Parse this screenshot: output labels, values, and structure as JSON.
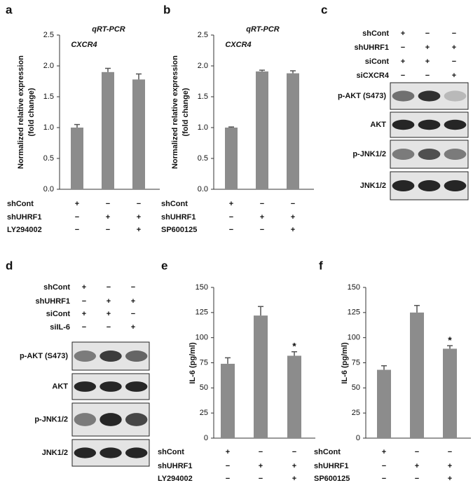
{
  "chart_data": [
    {
      "type": "bar",
      "panel": "a",
      "title": "qRT-PCR",
      "subtitle": "CXCR4",
      "y_label": [
        "Normalized relative expression",
        "(fold change)"
      ],
      "values": [
        1.0,
        1.9,
        1.78
      ],
      "errors": [
        0.05,
        0.06,
        0.09
      ],
      "significance": [
        null,
        null,
        null
      ],
      "color": "#8c8c8c",
      "ylim": [
        0,
        2.5
      ],
      "yticks": [
        {
          "value": 0,
          "label": "0.0"
        },
        0.5,
        {
          "value": 1,
          "label": "1.0"
        },
        1.5,
        {
          "value": 2,
          "label": "2.0"
        },
        2.5
      ],
      "conditions": [
        {
          "label": "shCont",
          "marks": [
            "+",
            "−",
            "−"
          ]
        },
        {
          "label": "shUHRF1",
          "marks": [
            "−",
            "+",
            "+"
          ]
        },
        {
          "label": "LY294002",
          "marks": [
            "−",
            "−",
            "+"
          ]
        }
      ]
    },
    {
      "type": "bar",
      "panel": "b",
      "title": "qRT-PCR",
      "subtitle": "CXCR4",
      "y_label": [
        "Normalized relative expression",
        "(fold change)"
      ],
      "values": [
        1.0,
        1.91,
        1.88
      ],
      "errors": [
        0.01,
        0.02,
        0.04
      ],
      "significance": [
        null,
        null,
        null
      ],
      "color": "#8c8c8c",
      "ylim": [
        0,
        2.5
      ],
      "yticks": [
        {
          "value": 0,
          "label": "0.0"
        },
        0.5,
        {
          "value": 1,
          "label": "1.0"
        },
        1.5,
        {
          "value": 2,
          "label": "2.0"
        },
        2.5
      ],
      "conditions": [
        {
          "label": "shCont",
          "marks": [
            "+",
            "−",
            "−"
          ]
        },
        {
          "label": "shUHRF1",
          "marks": [
            "−",
            "+",
            "+"
          ]
        },
        {
          "label": "SP600125",
          "marks": [
            "−",
            "−",
            "+"
          ]
        }
      ]
    },
    {
      "type": "bar",
      "panel": "e",
      "y_label": [
        "IL-6 (pg/ml)"
      ],
      "values": [
        74,
        122,
        82
      ],
      "errors": [
        6,
        9,
        4
      ],
      "significance": [
        null,
        null,
        "*"
      ],
      "color": "#8c8c8c",
      "ylim": [
        0,
        150
      ],
      "yticks": [
        0,
        25,
        50,
        75,
        100,
        125,
        150
      ],
      "conditions": [
        {
          "label": "shCont",
          "marks": [
            "+",
            "−",
            "−"
          ]
        },
        {
          "label": "shUHRF1",
          "marks": [
            "−",
            "+",
            "+"
          ]
        },
        {
          "label": "LY294002",
          "marks": [
            "−",
            "−",
            "+"
          ]
        }
      ]
    },
    {
      "type": "bar",
      "panel": "f",
      "y_label": [
        "IL-6 (pg/ml)"
      ],
      "values": [
        68,
        125,
        89
      ],
      "errors": [
        4,
        7,
        3
      ],
      "significance": [
        null,
        null,
        "*"
      ],
      "color": "#8c8c8c",
      "ylim": [
        0,
        150
      ],
      "yticks": [
        0,
        25,
        50,
        75,
        100,
        125,
        150
      ],
      "conditions": [
        {
          "label": "shCont",
          "marks": [
            "+",
            "−",
            "−"
          ]
        },
        {
          "label": "shUHRF1",
          "marks": [
            "−",
            "+",
            "+"
          ]
        },
        {
          "label": "SP600125",
          "marks": [
            "−",
            "−",
            "+"
          ]
        }
      ]
    }
  ],
  "blots": [
    {
      "panel": "c",
      "conditions": [
        {
          "label": "shCont",
          "marks": [
            "+",
            "−",
            "−"
          ]
        },
        {
          "label": "shUHRF1",
          "marks": [
            "−",
            "+",
            "+"
          ]
        },
        {
          "label": "siCont",
          "marks": [
            "+",
            "+",
            "−"
          ]
        },
        {
          "label": "siCXCR4",
          "marks": [
            "−",
            "−",
            "+"
          ]
        }
      ],
      "rows": [
        "p-AKT (S473)",
        "AKT",
        "p-JNK1/2",
        "JNK1/2"
      ]
    },
    {
      "panel": "d",
      "conditions": [
        {
          "label": "shCont",
          "marks": [
            "+",
            "−",
            "−"
          ]
        },
        {
          "label": "shUHRF1",
          "marks": [
            "−",
            "+",
            "+"
          ]
        },
        {
          "label": "siCont",
          "marks": [
            "+",
            "+",
            "−"
          ]
        },
        {
          "label": "siIL-6",
          "marks": [
            "−",
            "−",
            "+"
          ]
        }
      ],
      "rows": [
        "p-AKT (S473)",
        "AKT",
        "p-JNK1/2",
        "JNK1/2"
      ]
    }
  ]
}
